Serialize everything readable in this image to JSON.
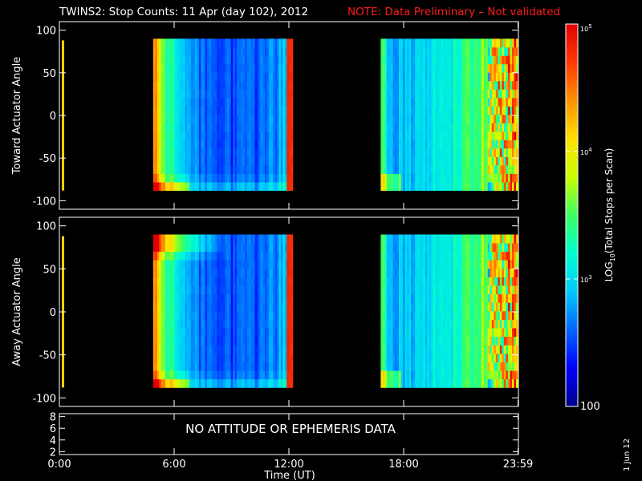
{
  "header": {
    "title": "TWINS2: Stop Counts: 11 Apr (day 102), 2012",
    "note": "NOTE: Data Preliminary – Not validated"
  },
  "footer": {
    "date_stamp": "1 Jun 12",
    "no_data_message": "NO ATTITUDE OR EPHEMERIS DATA"
  },
  "colors": {
    "background": "#000000",
    "axes": "#ffffff",
    "note_text": "#ff1a1a",
    "colormap": [
      "#00008c",
      "#0000ff",
      "#0064ff",
      "#00c8ff",
      "#00ffd0",
      "#3cff60",
      "#c8ff00",
      "#ffe000",
      "#ff9000",
      "#ff3800",
      "#e00000"
    ]
  },
  "chart_data": [
    {
      "type": "heatmap",
      "name": "toward",
      "ylabel": "Toward Actuator Angle",
      "ylim": [
        -110,
        110
      ],
      "yticks": [
        100,
        50,
        0,
        -50,
        -100
      ],
      "xlim": [
        0,
        24
      ],
      "x_unit": "hours UT",
      "angle_range": [
        -88,
        90
      ],
      "data_intervals_hours": [
        [
          4.9,
          12.2
        ],
        [
          16.8,
          23.98
        ]
      ],
      "min_counts_log10": 2.05,
      "max_counts_log10": 5.0
    },
    {
      "type": "heatmap",
      "name": "away",
      "ylabel": "Away Actuator Angle",
      "ylim": [
        -110,
        110
      ],
      "yticks": [
        100,
        50,
        0,
        -50,
        -100
      ],
      "xlim": [
        0,
        24
      ],
      "x_unit": "hours UT",
      "angle_range": [
        -88,
        90
      ],
      "data_intervals_hours": [
        [
          4.9,
          12.2
        ],
        [
          16.8,
          23.98
        ]
      ],
      "min_counts_log10": 2.05,
      "max_counts_log10": 5.0
    },
    {
      "type": "line",
      "name": "ephemeris",
      "ylim": [
        1.5,
        8.5
      ],
      "yticks": [
        8,
        6,
        4,
        2
      ],
      "xlabel": "Time (UT)",
      "xticks": [
        {
          "value": 0,
          "label": "0:00"
        },
        {
          "value": 6,
          "label": "6:00"
        },
        {
          "value": 12,
          "label": "12:00"
        },
        {
          "value": 18,
          "label": "18:00"
        },
        {
          "value": 23.98,
          "label": "23:59"
        }
      ],
      "xlim": [
        0,
        24
      ],
      "series": []
    },
    {
      "type": "colorbar",
      "label_parts": [
        "LOG",
        "10",
        "(Total Stops per Scan)"
      ],
      "scale": "log",
      "range": [
        100,
        100000
      ],
      "ticks": [
        {
          "value": 100,
          "base": "100",
          "exp": ""
        },
        {
          "value": 1000,
          "base": "10",
          "exp": "3"
        },
        {
          "value": 10000,
          "base": "10",
          "exp": "4"
        },
        {
          "value": 100000,
          "base": "10",
          "exp": "5"
        }
      ]
    }
  ]
}
